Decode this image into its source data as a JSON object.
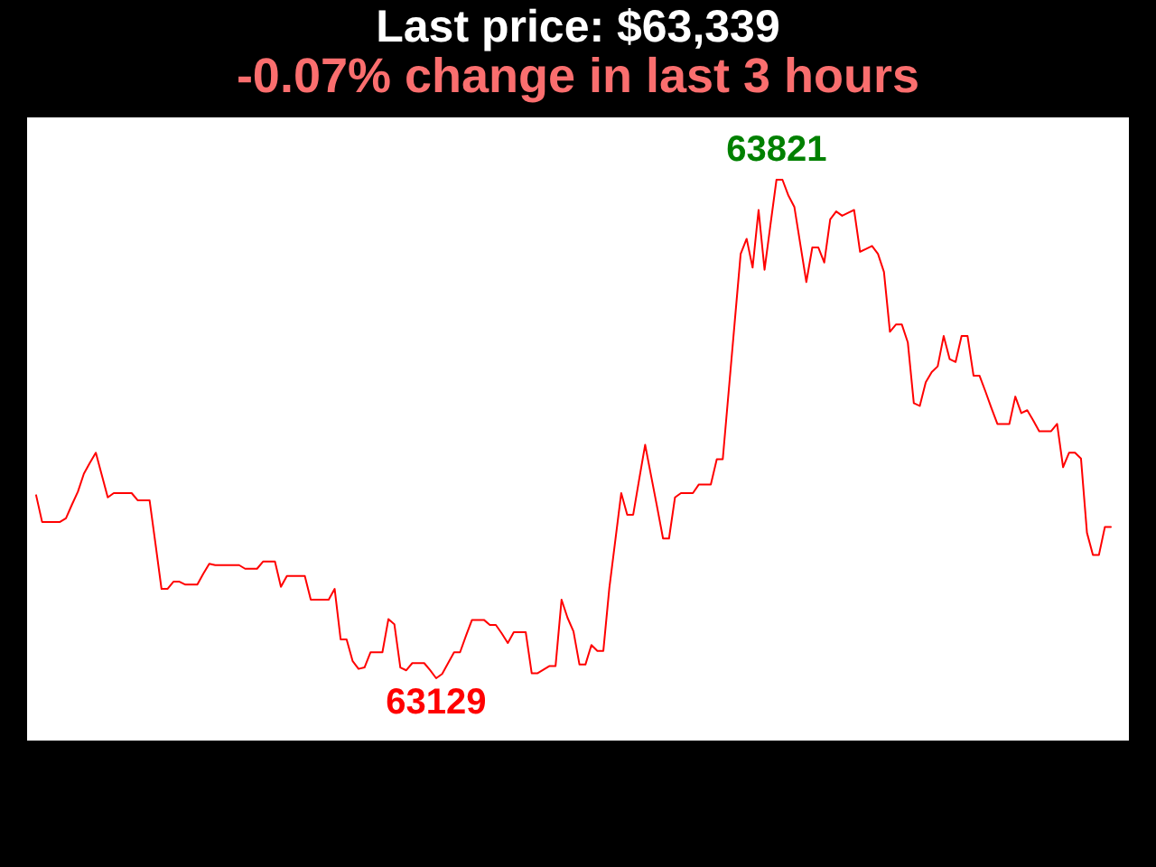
{
  "chart_data": {
    "type": "line",
    "title": "Last price: $63,339",
    "subtitle": "-0.07% change in last 3 hours",
    "color": "#ff0000",
    "marker": "none",
    "tick_labels": false,
    "categories": [
      null,
      null,
      null,
      null,
      null,
      null,
      null,
      null,
      null,
      null,
      null,
      null,
      null,
      null,
      null,
      null,
      null,
      null,
      null,
      null,
      null,
      null,
      null,
      null,
      null,
      null,
      null,
      null,
      null,
      null,
      null,
      null,
      null,
      null,
      null,
      null,
      null,
      null,
      null,
      null,
      null,
      null,
      null,
      null,
      null,
      null,
      null,
      null,
      null,
      null,
      null,
      null,
      null,
      null,
      null,
      null,
      null,
      null,
      null,
      null,
      null,
      null,
      null,
      null,
      null,
      null,
      null,
      null,
      null,
      null,
      null,
      null,
      null,
      null,
      null,
      null,
      null,
      null,
      null,
      null,
      null,
      null,
      null,
      null,
      null,
      null,
      null,
      null,
      null,
      null,
      null,
      null,
      null,
      null,
      null,
      null,
      null,
      null,
      null,
      null,
      null,
      null,
      null,
      null,
      null,
      null,
      null,
      null,
      null,
      null,
      null,
      null,
      null,
      null,
      null,
      null,
      null,
      null,
      null,
      null,
      null,
      null,
      null,
      null,
      null,
      null,
      null,
      null,
      null,
      null,
      null,
      null,
      null,
      null,
      null,
      null,
      null,
      null,
      null,
      null,
      null,
      null,
      null,
      null,
      null,
      null,
      null,
      null,
      null,
      null,
      null,
      null,
      null,
      null,
      null,
      null,
      null,
      null,
      null,
      null,
      null,
      null,
      null,
      null,
      null,
      null,
      null,
      null,
      null,
      null,
      null,
      null,
      null,
      null,
      null,
      null,
      null,
      null,
      null,
      null,
      null
    ],
    "values": [
      63383,
      63346,
      63346,
      63346,
      63346,
      63351,
      63370,
      63388,
      63413,
      63428,
      63442,
      63411,
      63380,
      63386,
      63386,
      63386,
      63386,
      63376,
      63376,
      63376,
      63315,
      63253,
      63253,
      63263,
      63263,
      63259,
      63259,
      63259,
      63274,
      63288,
      63286,
      63286,
      63286,
      63286,
      63286,
      63281,
      63281,
      63281,
      63291,
      63291,
      63291,
      63256,
      63271,
      63271,
      63271,
      63271,
      63238,
      63238,
      63238,
      63238,
      63253,
      63183,
      63183,
      63153,
      63142,
      63144,
      63165,
      63165,
      63165,
      63211,
      63204,
      63144,
      63140,
      63150,
      63150,
      63150,
      63140,
      63129,
      63135,
      63150,
      63165,
      63165,
      63188,
      63210,
      63210,
      63210,
      63203,
      63203,
      63191,
      63178,
      63193,
      63193,
      63193,
      63136,
      63136,
      63141,
      63146,
      63146,
      63238,
      63213,
      63194,
      63148,
      63148,
      63175,
      63167,
      63167,
      63254,
      63320,
      63386,
      63356,
      63356,
      63405,
      63453,
      63410,
      63367,
      63323,
      63323,
      63380,
      63386,
      63386,
      63386,
      63398,
      63398,
      63398,
      63433,
      63433,
      63528,
      63623,
      63718,
      63739,
      63699,
      63779,
      63696,
      63759,
      63821,
      63821,
      63799,
      63783,
      63731,
      63679,
      63727,
      63727,
      63706,
      63766,
      63777,
      63771,
      63775,
      63779,
      63721,
      63725,
      63729,
      63718,
      63693,
      63610,
      63620,
      63620,
      63595,
      63511,
      63507,
      63540,
      63554,
      63562,
      63604,
      63572,
      63568,
      63604,
      63604,
      63549,
      63549,
      63527,
      63504,
      63482,
      63482,
      63482,
      63520,
      63497,
      63501,
      63487,
      63472,
      63472,
      63472,
      63482,
      63422,
      63442,
      63442,
      63434,
      63331,
      63300,
      63300,
      63339,
      63339
    ],
    "value_labels": [
      null,
      null,
      null,
      null,
      null,
      null,
      null,
      null,
      null,
      null,
      null,
      null,
      null,
      null,
      null,
      null,
      null,
      null,
      null,
      null,
      null,
      null,
      null,
      null,
      null,
      null,
      null,
      null,
      null,
      null,
      null,
      null,
      null,
      null,
      null,
      null,
      null,
      null,
      null,
      null,
      null,
      null,
      null,
      null,
      null,
      null,
      null,
      null,
      null,
      null,
      null,
      null,
      null,
      null,
      null,
      null,
      null,
      null,
      null,
      null,
      null,
      null,
      null,
      null,
      null,
      null,
      null,
      "63129",
      null,
      null,
      null,
      null,
      null,
      null,
      null,
      null,
      null,
      null,
      null,
      null,
      null,
      null,
      null,
      null,
      null,
      null,
      null,
      null,
      null,
      null,
      null,
      null,
      null,
      null,
      null,
      null,
      null,
      null,
      null,
      null,
      null,
      null,
      null,
      null,
      null,
      null,
      null,
      null,
      null,
      null,
      null,
      null,
      null,
      null,
      null,
      null,
      null,
      null,
      null,
      null,
      null,
      null,
      null,
      null,
      "63821",
      null,
      null,
      null,
      null,
      null,
      null,
      null,
      null,
      null,
      null,
      null,
      null,
      null,
      null,
      null,
      null,
      null,
      null,
      null,
      null,
      null,
      null,
      null,
      null,
      null,
      null,
      null,
      null,
      null,
      null,
      null,
      null,
      null,
      null,
      null,
      null,
      null,
      null,
      null,
      null,
      null,
      null,
      null,
      null,
      null,
      null,
      null,
      null,
      null,
      null,
      null,
      null,
      null,
      null,
      null,
      null
    ]
  }
}
